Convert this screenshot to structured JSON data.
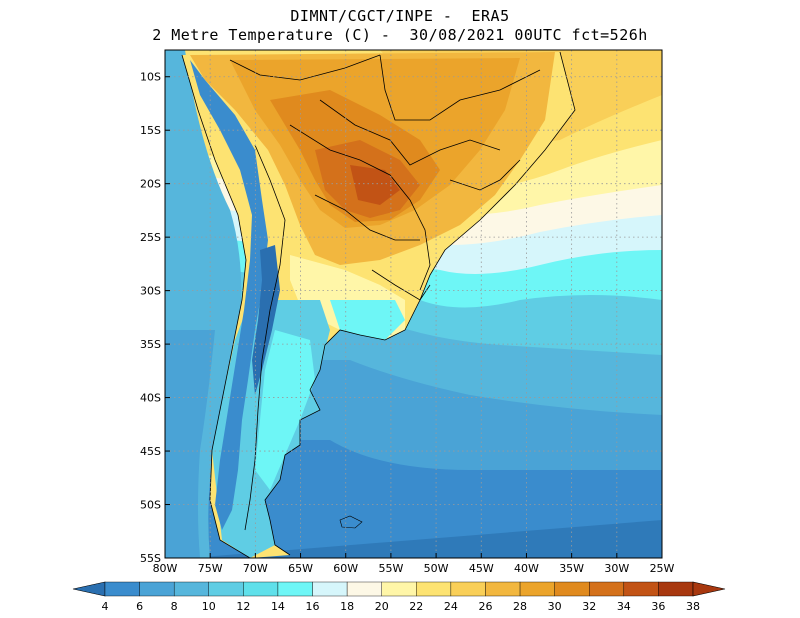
{
  "header": {
    "title_line1": "DIMNT/CGCT/INPE -  ERA5",
    "title_line2": "2 Metre Temperature (C) -  30/08/2021 00UTC fct=526h"
  },
  "map": {
    "lon_range": [
      -80,
      -25
    ],
    "lat_range": [
      -55,
      -7.5
    ],
    "lon_ticks": [
      "80W",
      "75W",
      "70W",
      "65W",
      "60W",
      "55W",
      "50W",
      "45W",
      "40W",
      "35W",
      "30W",
      "25W"
    ],
    "lat_ticks": [
      "10S",
      "15S",
      "20S",
      "25S",
      "30S",
      "35S",
      "40S",
      "45S",
      "50S",
      "55S"
    ],
    "gridlines": "dotted"
  },
  "colorbar": {
    "labels": [
      "4",
      "6",
      "8",
      "10",
      "12",
      "14",
      "16",
      "18",
      "20",
      "22",
      "24",
      "26",
      "28",
      "30",
      "32",
      "34",
      "36",
      "38"
    ],
    "colors": [
      "#2a6fb0",
      "#3a8ccd",
      "#4aa3d6",
      "#56b6dc",
      "#5fcde4",
      "#5fe0ea",
      "#6ef6f6",
      "#d6f6fb",
      "#fdf8e6",
      "#fff6a8",
      "#fde372",
      "#f9cf58",
      "#f2b73f",
      "#eba42b",
      "#e08a1e",
      "#d4711b",
      "#c25315",
      "#a8380f"
    ]
  }
}
